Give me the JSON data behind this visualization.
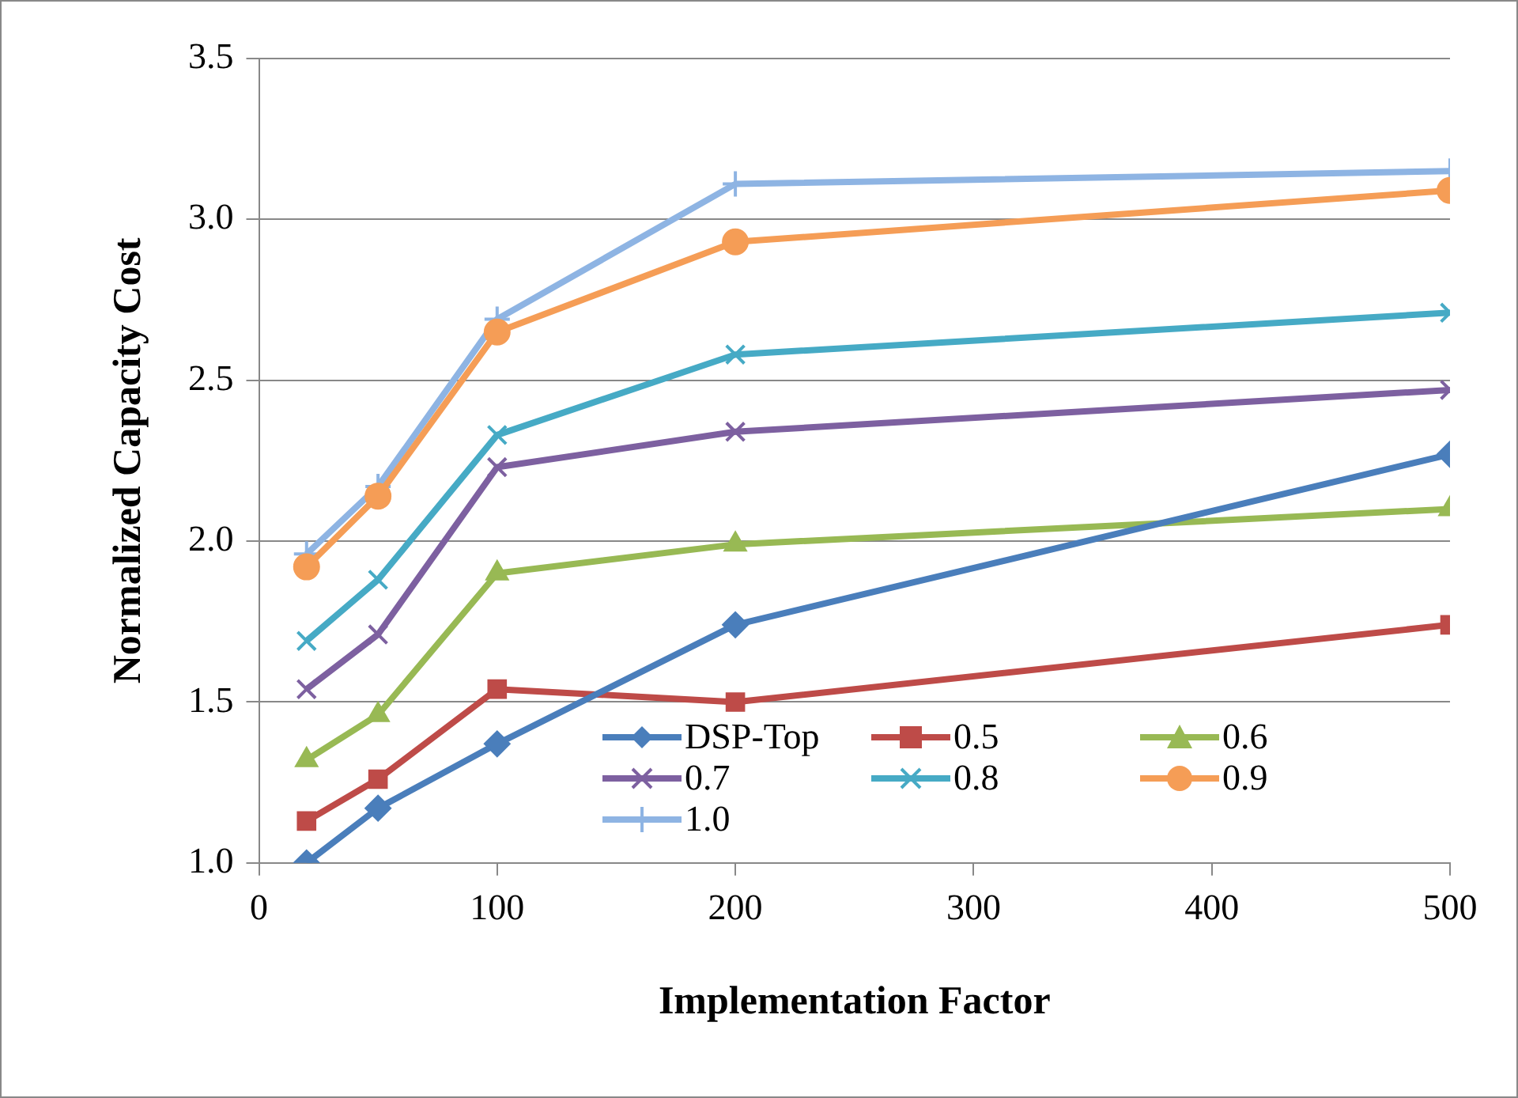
{
  "chart_data": {
    "type": "line",
    "xlabel": "Implementation Factor",
    "ylabel": "Normalized Capacity Cost",
    "x": [
      20,
      50,
      100,
      200,
      500
    ],
    "xlim": [
      0,
      500
    ],
    "xticks": [
      0,
      100,
      200,
      300,
      400,
      500
    ],
    "ylim": [
      1.0,
      3.5
    ],
    "yticks": [
      {
        "value": 1.0,
        "label": "1.0"
      },
      {
        "value": 1.5,
        "label": "1.5"
      },
      {
        "value": 2.0,
        "label": "2.0"
      },
      {
        "value": 2.5,
        "label": "2.5"
      },
      {
        "value": 3.0,
        "label": "3.0"
      },
      {
        "value": 3.5,
        "label": "3.5"
      }
    ],
    "grid": "y",
    "legend": "bottom",
    "line_style": "solid",
    "series": [
      {
        "name": "DSP-Top",
        "color": "#4a7ebb",
        "marker": "diamond",
        "values": [
          1.0,
          1.17,
          1.37,
          1.74,
          2.27
        ]
      },
      {
        "name": "0.5",
        "color": "#be4b48",
        "marker": "square",
        "values": [
          1.13,
          1.26,
          1.54,
          1.5,
          1.74
        ]
      },
      {
        "name": "0.6",
        "color": "#98b954",
        "marker": "triangle",
        "values": [
          1.32,
          1.46,
          1.9,
          1.99,
          2.1
        ]
      },
      {
        "name": "0.7",
        "color": "#7d60a0",
        "marker": "cross",
        "values": [
          1.54,
          1.71,
          2.23,
          2.34,
          2.47
        ]
      },
      {
        "name": "0.8",
        "color": "#46aac5",
        "marker": "cross",
        "values": [
          1.69,
          1.88,
          2.33,
          2.58,
          2.71
        ]
      },
      {
        "name": "0.9",
        "color": "#f59d56",
        "marker": "circle",
        "values": [
          1.92,
          2.14,
          2.65,
          2.93,
          3.09
        ]
      },
      {
        "name": "1.0",
        "color": "#8eb4e3",
        "marker": "plus",
        "values": [
          1.96,
          2.17,
          2.69,
          3.11,
          3.15
        ]
      }
    ]
  }
}
